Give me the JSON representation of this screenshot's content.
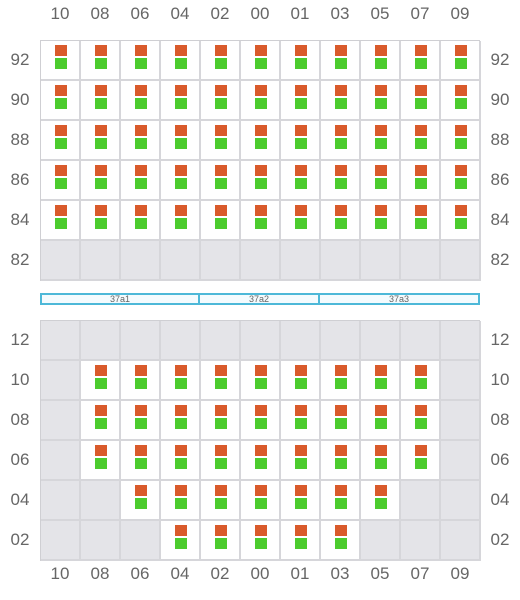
{
  "columns": [
    "10",
    "08",
    "06",
    "04",
    "02",
    "00",
    "01",
    "03",
    "05",
    "07",
    "09"
  ],
  "upper": {
    "rows": [
      {
        "label": "92",
        "occupied": [
          1,
          1,
          1,
          1,
          1,
          1,
          1,
          1,
          1,
          1,
          1
        ]
      },
      {
        "label": "90",
        "occupied": [
          1,
          1,
          1,
          1,
          1,
          1,
          1,
          1,
          1,
          1,
          1
        ]
      },
      {
        "label": "88",
        "occupied": [
          1,
          1,
          1,
          1,
          1,
          1,
          1,
          1,
          1,
          1,
          1
        ]
      },
      {
        "label": "86",
        "occupied": [
          1,
          1,
          1,
          1,
          1,
          1,
          1,
          1,
          1,
          1,
          1
        ]
      },
      {
        "label": "84",
        "occupied": [
          1,
          1,
          1,
          1,
          1,
          1,
          1,
          1,
          1,
          1,
          1
        ]
      },
      {
        "label": "82",
        "occupied": [
          0,
          0,
          0,
          0,
          0,
          0,
          0,
          0,
          0,
          0,
          0
        ]
      }
    ]
  },
  "aisle": {
    "segments": [
      {
        "label": "37a1",
        "span": 4
      },
      {
        "label": "37a2",
        "span": 3
      },
      {
        "label": "37a3",
        "span": 4
      }
    ]
  },
  "lower": {
    "rows": [
      {
        "label": "12",
        "occupied": [
          0,
          0,
          0,
          0,
          0,
          0,
          0,
          0,
          0,
          0,
          0
        ],
        "open": [
          0,
          0,
          0,
          0,
          0,
          0,
          0,
          0,
          0,
          0,
          0
        ]
      },
      {
        "label": "10",
        "occupied": [
          0,
          1,
          1,
          1,
          1,
          1,
          1,
          1,
          1,
          1,
          0
        ],
        "open": [
          0,
          1,
          1,
          1,
          1,
          1,
          1,
          1,
          1,
          1,
          0
        ]
      },
      {
        "label": "08",
        "occupied": [
          0,
          1,
          1,
          1,
          1,
          1,
          1,
          1,
          1,
          1,
          0
        ],
        "open": [
          0,
          1,
          1,
          1,
          1,
          1,
          1,
          1,
          1,
          1,
          0
        ]
      },
      {
        "label": "06",
        "occupied": [
          0,
          1,
          1,
          1,
          1,
          1,
          1,
          1,
          1,
          1,
          0
        ],
        "open": [
          0,
          1,
          1,
          1,
          1,
          1,
          1,
          1,
          1,
          1,
          0
        ]
      },
      {
        "label": "04",
        "occupied": [
          0,
          0,
          1,
          1,
          1,
          1,
          1,
          1,
          1,
          0,
          0
        ],
        "open": [
          0,
          0,
          1,
          1,
          1,
          1,
          1,
          1,
          1,
          0,
          0
        ]
      },
      {
        "label": "02",
        "occupied": [
          0,
          0,
          0,
          1,
          1,
          1,
          1,
          1,
          0,
          0,
          0
        ],
        "open": [
          0,
          0,
          0,
          1,
          1,
          1,
          1,
          1,
          0,
          0,
          0
        ]
      }
    ]
  },
  "colors": {
    "top_block": "#d95a2b",
    "bottom_block": "#4ccc2e",
    "empty_cell": "#e4e4e8",
    "aisle_border": "#4db8d8"
  }
}
